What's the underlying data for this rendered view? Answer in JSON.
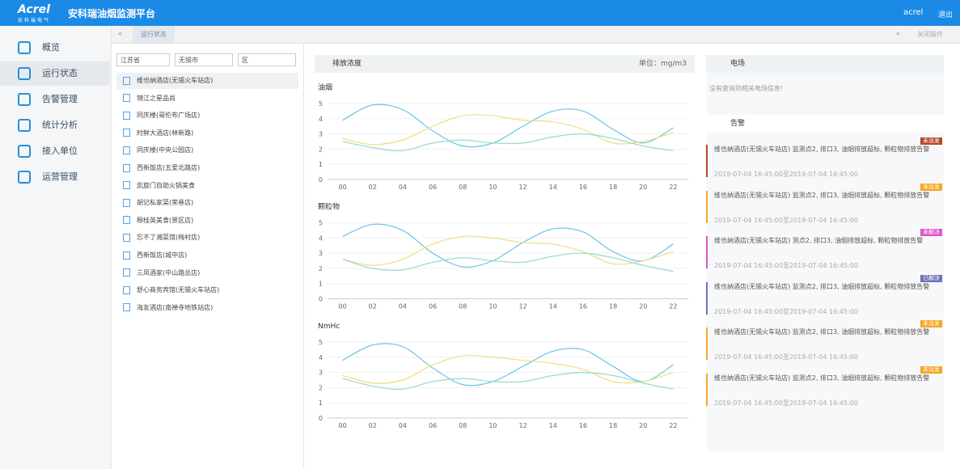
{
  "header": {
    "logo": "Acrel",
    "logo_sub": "安科瑞电气",
    "title": "安科瑞油烟监测平台",
    "user": "acrel",
    "logout": "退出"
  },
  "menu": [
    "概览",
    "运行状态",
    "告警管理",
    "统计分析",
    "接入单位",
    "运营管理"
  ],
  "tabs": {
    "current": "运行状态",
    "close": "关闭操作"
  },
  "filters": [
    "江苏省",
    "无锡市",
    "区"
  ],
  "stores": [
    "维也纳酒店(无锡火车站店)",
    "锦江之星品尚",
    "同庆楼(哥伦布广场店)",
    "时鲜大酒店(林新路)",
    "同庆楼(中央公园店)",
    "西新饭店(五爱北路店)",
    "凯旋门自助火锅美食",
    "胡记私家菜(荣巷店)",
    "穆桂英美食(景区店)",
    "忘不了湘菜馆(梅村店)",
    "西新饭店(城中店)",
    "三凤酒家(中山路总店)",
    "舒心商务宾馆(无锡火车站店)",
    "海友酒店(南禅寺地铁站店)"
  ],
  "emission": {
    "title": "排放浓度",
    "unit": "单位：mg/m3",
    "charts": [
      {
        "type": "line",
        "title": "油烟",
        "categories": [
          "00",
          "02",
          "04",
          "06",
          "08",
          "10",
          "12",
          "14",
          "16",
          "18",
          "20",
          "22"
        ],
        "ylim": [
          0,
          5
        ],
        "yticks": [
          0,
          1,
          2,
          3,
          4,
          5
        ],
        "grid": true,
        "series": [
          {
            "color": "#6cc4e8",
            "values": [
              3.9,
              4.9,
              4.6,
              3.2,
              2.2,
              2.4,
              3.5,
              4.5,
              4.5,
              3.3,
              2.4,
              3.4
            ]
          },
          {
            "color": "#f0df7a",
            "values": [
              2.7,
              2.3,
              2.6,
              3.5,
              4.2,
              4.2,
              3.9,
              3.8,
              3.3,
              2.4,
              2.5,
              3.1
            ]
          },
          {
            "color": "#95dcc8",
            "values": [
              2.5,
              2.1,
              1.9,
              2.4,
              2.6,
              2.4,
              2.4,
              2.8,
              3.0,
              2.7,
              2.2,
              1.9
            ]
          }
        ]
      },
      {
        "type": "line",
        "title": "颗粒物",
        "categories": [
          "00",
          "02",
          "04",
          "06",
          "08",
          "10",
          "12",
          "14",
          "16",
          "18",
          "20",
          "22"
        ],
        "ylim": [
          0,
          5
        ],
        "yticks": [
          0,
          1,
          2,
          3,
          4,
          5
        ],
        "grid": true,
        "series": [
          {
            "color": "#6cc4e8",
            "values": [
              4.1,
              4.9,
              4.5,
              3.0,
              2.1,
              2.5,
              3.7,
              4.6,
              4.4,
              3.1,
              2.5,
              3.6
            ]
          },
          {
            "color": "#f0df7a",
            "values": [
              2.6,
              2.2,
              2.6,
              3.6,
              4.1,
              4.0,
              3.7,
              3.6,
              3.1,
              2.3,
              2.5,
              3.1
            ]
          },
          {
            "color": "#95dcc8",
            "values": [
              2.6,
              2.0,
              1.9,
              2.4,
              2.7,
              2.5,
              2.4,
              2.8,
              3.0,
              2.7,
              2.2,
              1.8
            ]
          }
        ]
      },
      {
        "type": "line",
        "title": "NmHc",
        "categories": [
          "00",
          "02",
          "04",
          "06",
          "08",
          "10",
          "12",
          "14",
          "16",
          "18",
          "20",
          "22"
        ],
        "ylim": [
          0,
          5
        ],
        "yticks": [
          0,
          1,
          2,
          3,
          4,
          5
        ],
        "grid": true,
        "series": [
          {
            "color": "#6cc4e8",
            "values": [
              3.8,
              4.8,
              4.7,
              3.3,
              2.2,
              2.4,
              3.4,
              4.4,
              4.5,
              3.4,
              2.4,
              3.5
            ]
          },
          {
            "color": "#f0df7a",
            "values": [
              2.8,
              2.3,
              2.5,
              3.5,
              4.1,
              4.0,
              3.8,
              3.6,
              3.2,
              2.4,
              2.4,
              3.0
            ]
          },
          {
            "color": "#95dcc8",
            "values": [
              2.6,
              2.1,
              1.9,
              2.4,
              2.6,
              2.4,
              2.4,
              2.8,
              3.0,
              2.8,
              2.3,
              1.9
            ]
          }
        ]
      }
    ]
  },
  "field": {
    "title": "电场",
    "empty": "没有查询到相关电场信息!"
  },
  "alarms": {
    "title": "告警",
    "items": [
      {
        "status": "未派发",
        "color": "#b3472c",
        "text": "维也纳酒店(无锡火车站店) 监测点2, 排口3, 油烟排放超标, 颗粒物排放告警",
        "time": "2019-07-04 16:45:00至2019-07-04 16:45:00"
      },
      {
        "status": "未派发",
        "color": "#f5a623",
        "text": "维也纳酒店(无锡火车站店) 监测点2, 排口3, 油烟排放超标, 颗粒物排放告警",
        "time": "2019-07-04 16:45:00至2019-07-04 16:45:00"
      },
      {
        "status": "未解决",
        "color": "#e055d0",
        "text": "维也纳酒店(无锡火车站店) 测点2, 排口3, 油烟排放超标, 颗粒物排放告警",
        "time": "2019-07-04 16:45:00至2019-07-04 16:45:00"
      },
      {
        "status": "已解决",
        "color": "#6c72b8",
        "text": "维也纳酒店(无锡火车站店) 监测点2, 排口3, 油烟排放超标, 颗粒物排放告警",
        "time": "2019-07-04 16:45:00至2019-07-04 16:45:00"
      },
      {
        "status": "未派发",
        "color": "#f5a623",
        "text": "维也纳酒店(无锡火车站店) 监测点2, 排口3, 油烟排放超标, 颗粒物排放告警",
        "time": "2019-07-04 16:45:00至2019-07-04 16:45:00"
      },
      {
        "status": "未派发",
        "color": "#f5a623",
        "text": "维也纳酒店(无锡火车站店) 监测点2, 排口3, 油烟排放超标, 颗粒物排放告警",
        "time": "2019-07-04 16:45:00至2019-07-04 16:45:00"
      }
    ]
  }
}
